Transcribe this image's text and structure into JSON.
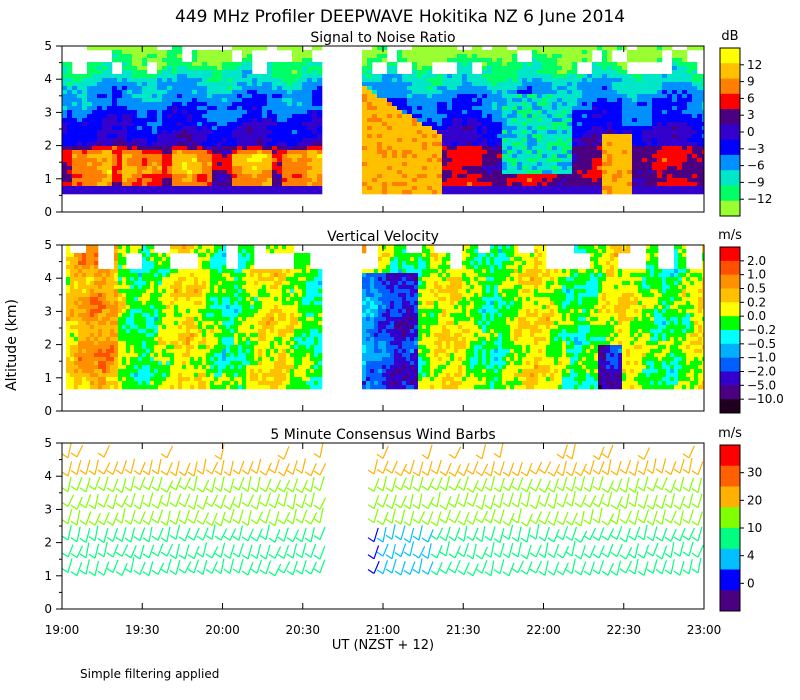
{
  "title": "449 MHz Profiler DEEPWAVE Hokitika NZ   6 June 2014",
  "ylabel": "Altitude (km)",
  "xlabel": "UT  (NZST + 12)",
  "footnote": "Simple filtering applied",
  "chart_data": {
    "type": "heatmap",
    "x_ticks": [
      "19:00",
      "19:30",
      "20:00",
      "20:30",
      "21:00",
      "21:30",
      "22:00",
      "22:30",
      "23:00"
    ],
    "x_range_hours": [
      19,
      23
    ],
    "data_gap_hours": [
      20.62,
      20.87
    ],
    "y_ticks": [
      "0",
      "1",
      "2",
      "3",
      "4",
      "5"
    ],
    "y_range_km": [
      0,
      5
    ],
    "panels": [
      {
        "title": "Signal to Noise Ratio",
        "unit": "dB",
        "colorbar_labels": [
          "12",
          "9",
          "6",
          "3",
          "0",
          "−3",
          "−6",
          "−9",
          "−12"
        ],
        "colors": [
          "#ffff00",
          "#ffc000",
          "#ff8000",
          "#ff0000",
          "#4b0082",
          "#3300cc",
          "#0000ff",
          "#0090ff",
          "#00e6c8",
          "#00ff64",
          "#99ff33"
        ],
        "features": [
          {
            "time": "21:05",
            "altitude_range_km": [
              0.7,
              3.8
            ],
            "level": "high (9 to 12 dB)"
          },
          {
            "time": "22:30",
            "altitude_range_km": [
              0.7,
              2.4
            ],
            "level": "high (9 to 12 dB)"
          }
        ]
      },
      {
        "title": "Vertical Velocity",
        "unit": "m/s",
        "colorbar_labels": [
          "2.0",
          "1.0",
          "0.5",
          "0.2",
          "0.0",
          "−0.2",
          "−0.5",
          "−1.0",
          "−2.0",
          "−5.0",
          "−10.0"
        ],
        "colors": [
          "#ff0000",
          "#ff5000",
          "#ff9000",
          "#ffc000",
          "#ffff00",
          "#00ff00",
          "#00ffff",
          "#00b0ff",
          "#0060ff",
          "#3300cc",
          "#4b0082",
          "#200020"
        ]
      },
      {
        "title": "5 Minute Consensus Wind Barbs",
        "unit": "m/s",
        "colorbar_labels": [
          "30",
          "20",
          "10",
          "4",
          "0"
        ],
        "colors": [
          "#ff0000",
          "#ff6000",
          "#ffb000",
          "#80ff00",
          "#00ff80",
          "#00c0ff",
          "#0000ff",
          "#4b0082"
        ],
        "wind_regime": "northwesterly winds of about 10 to 20 m/s between 1 and 5 km"
      }
    ]
  }
}
